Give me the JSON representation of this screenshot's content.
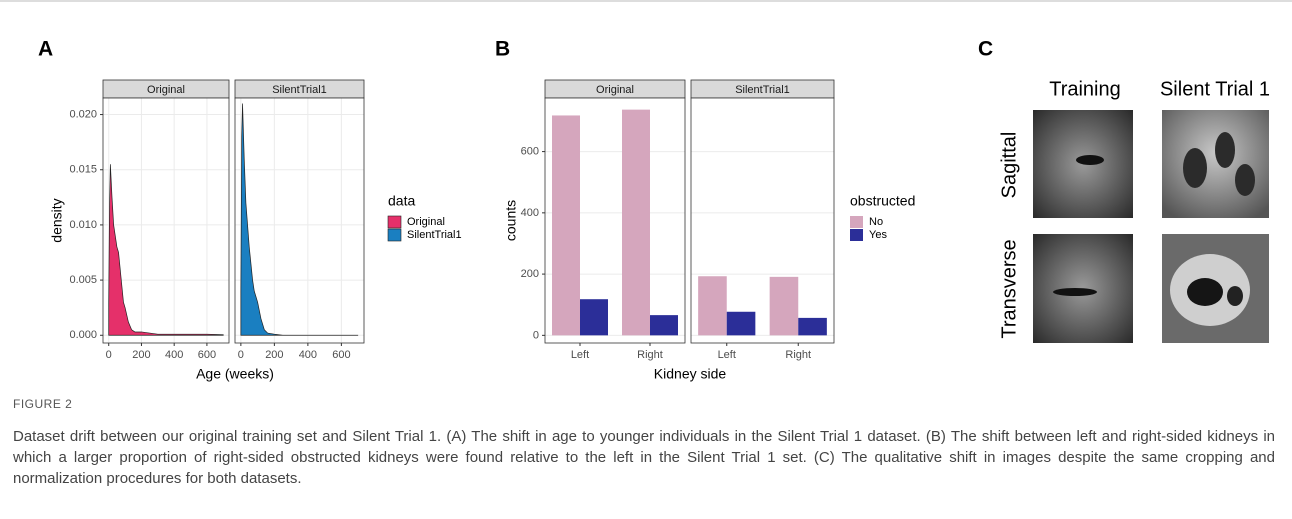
{
  "chart_data": [
    {
      "type": "area",
      "panel": "A",
      "x_label": "Age (weeks)",
      "y_label": "density",
      "legend_title": "data",
      "x": [
        0,
        5,
        10,
        20,
        30,
        40,
        50,
        60,
        70,
        80,
        90,
        100,
        120,
        140,
        160,
        200,
        250,
        300,
        400,
        500,
        600,
        700
      ],
      "series": [
        {
          "name": "Original",
          "color": "#e5306a"
        },
        {
          "name": "SilentTrial1",
          "color": "#1a7fc1"
        }
      ],
      "facets": [
        {
          "title": "Original",
          "values": [
            0.003,
            0.012,
            0.0155,
            0.0125,
            0.01,
            0.009,
            0.008,
            0.0075,
            0.006,
            0.0045,
            0.003,
            0.0025,
            0.0012,
            0.0005,
            0.0003,
            0.0003,
            0.0002,
            0.0001,
            0.0001,
            0.0001,
            0.0001,
            5e-05
          ]
        },
        {
          "title": "SilentTrial1",
          "values": [
            0.004,
            0.018,
            0.021,
            0.016,
            0.012,
            0.01,
            0.008,
            0.0065,
            0.005,
            0.004,
            0.0035,
            0.003,
            0.0015,
            0.0005,
            0.0002,
            0.0001,
            0,
            0,
            0,
            0,
            0,
            0
          ]
        }
      ],
      "xlim": [
        -35,
        735
      ],
      "xticks": [
        0,
        200,
        400,
        600
      ],
      "ylim": [
        -0.0007,
        0.0215
      ],
      "yticks": [
        {
          "value": 0,
          "label": "0.000"
        },
        {
          "value": 0.005,
          "label": "0.005"
        },
        {
          "value": 0.01,
          "label": "0.010"
        },
        {
          "value": 0.015,
          "label": "0.015"
        },
        {
          "value": 0.02,
          "label": "0.020"
        }
      ],
      "grid": true
    },
    {
      "type": "bar",
      "panel": "B",
      "x_label": "Kidney side",
      "y_label": "counts",
      "legend_title": "obstructed",
      "categories": [
        "Left",
        "Right"
      ],
      "series": [
        {
          "name": "No",
          "color": "#d5a6bd"
        },
        {
          "name": "Yes",
          "color": "#2b2e98"
        }
      ],
      "facets": [
        {
          "title": "Original",
          "values": [
            [
              718,
              737
            ],
            [
              118,
              66
            ]
          ]
        },
        {
          "title": "SilentTrial1",
          "values": [
            [
              193,
              191
            ],
            [
              77,
              57
            ]
          ]
        }
      ],
      "ylim": [
        -25,
        775
      ],
      "yticks": [
        0,
        200,
        400,
        600
      ],
      "grid": true
    }
  ],
  "panel_c": {
    "panel": "C",
    "columns": [
      "Training",
      "Silent Trial 1"
    ],
    "rows": [
      "Sagittal",
      "Transverse"
    ]
  },
  "caption": {
    "label": "FIGURE 2",
    "text": "Dataset drift between our original training set and Silent Trial 1. (A) The shift in age to younger individuals in the Silent Trial 1 dataset. (B) The shift between left and right-sided kidneys in which a larger proportion of right-sided obstructed kidneys were found relative to the left in the Silent Trial 1 set. (C) The qualitative shift in images despite the same cropping and normalization procedures for both datasets."
  }
}
